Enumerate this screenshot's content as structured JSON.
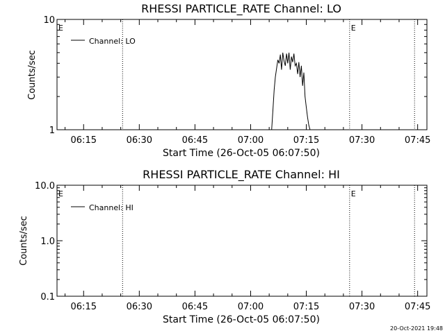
{
  "chart_data": [
    {
      "type": "line",
      "title": "RHESSI PARTICLE_RATE Channel: LO",
      "xlabel": "Start Time (26-Oct-05 06:07:50)",
      "ylabel": "Counts/sec",
      "yscale": "log",
      "ylim": [
        1,
        10
      ],
      "ytick_labels": [
        "1",
        "10"
      ],
      "xlim": [
        "06:07:50",
        "07:47:30"
      ],
      "xtick_labels": [
        "06:15",
        "06:30",
        "06:45",
        "07:00",
        "07:15",
        "07:30",
        "07:45"
      ],
      "vertical_markers": [
        "06:25:30",
        "07:26:40",
        "07:44:10"
      ],
      "marker_labels": [
        {
          "text": "E",
          "at": "06:07:50"
        },
        {
          "text": "E",
          "at": "07:26:40"
        }
      ],
      "legend": "top-left",
      "series": [
        {
          "name": "Channel: LO",
          "x": [
            "07:05:40",
            "07:06:00",
            "07:06:20",
            "07:06:40",
            "07:07:00",
            "07:07:20",
            "07:07:40",
            "07:08:00",
            "07:08:20",
            "07:08:40",
            "07:09:00",
            "07:09:20",
            "07:09:40",
            "07:10:00",
            "07:10:20",
            "07:10:40",
            "07:11:00",
            "07:11:20",
            "07:11:40",
            "07:12:00",
            "07:12:20",
            "07:12:40",
            "07:13:00",
            "07:13:20",
            "07:13:40",
            "07:14:00",
            "07:14:20",
            "07:14:40",
            "07:15:00",
            "07:15:20",
            "07:15:40",
            "07:16:00"
          ],
          "values": [
            1.0,
            1.5,
            2.3,
            3.0,
            3.6,
            4.3,
            4.0,
            4.8,
            3.5,
            5.0,
            4.2,
            3.8,
            4.9,
            4.0,
            5.0,
            3.5,
            4.6,
            4.1,
            4.9,
            3.8,
            4.0,
            3.2,
            4.1,
            3.0,
            3.8,
            2.5,
            3.3,
            2.0,
            1.6,
            1.3,
            1.1,
            1.0
          ]
        }
      ]
    },
    {
      "type": "line",
      "title": "RHESSI PARTICLE_RATE Channel: HI",
      "xlabel": "Start Time (26-Oct-05 06:07:50)",
      "ylabel": "Counts/sec",
      "yscale": "log",
      "ylim": [
        0.1,
        10
      ],
      "ytick_labels": [
        "0.1",
        "1.0",
        "10.0"
      ],
      "xlim": [
        "06:07:50",
        "07:47:30"
      ],
      "xtick_labels": [
        "06:15",
        "06:30",
        "06:45",
        "07:00",
        "07:15",
        "07:30",
        "07:45"
      ],
      "vertical_markers": [
        "06:25:30",
        "07:26:40",
        "07:44:10"
      ],
      "marker_labels": [
        {
          "text": "E",
          "at": "06:07:50"
        },
        {
          "text": "E",
          "at": "07:26:40"
        }
      ],
      "legend": "top-left",
      "series": [
        {
          "name": "Channel: HI",
          "x": [],
          "values": []
        }
      ]
    }
  ],
  "footer": {
    "timestamp": "20-Oct-2021 19:48"
  }
}
